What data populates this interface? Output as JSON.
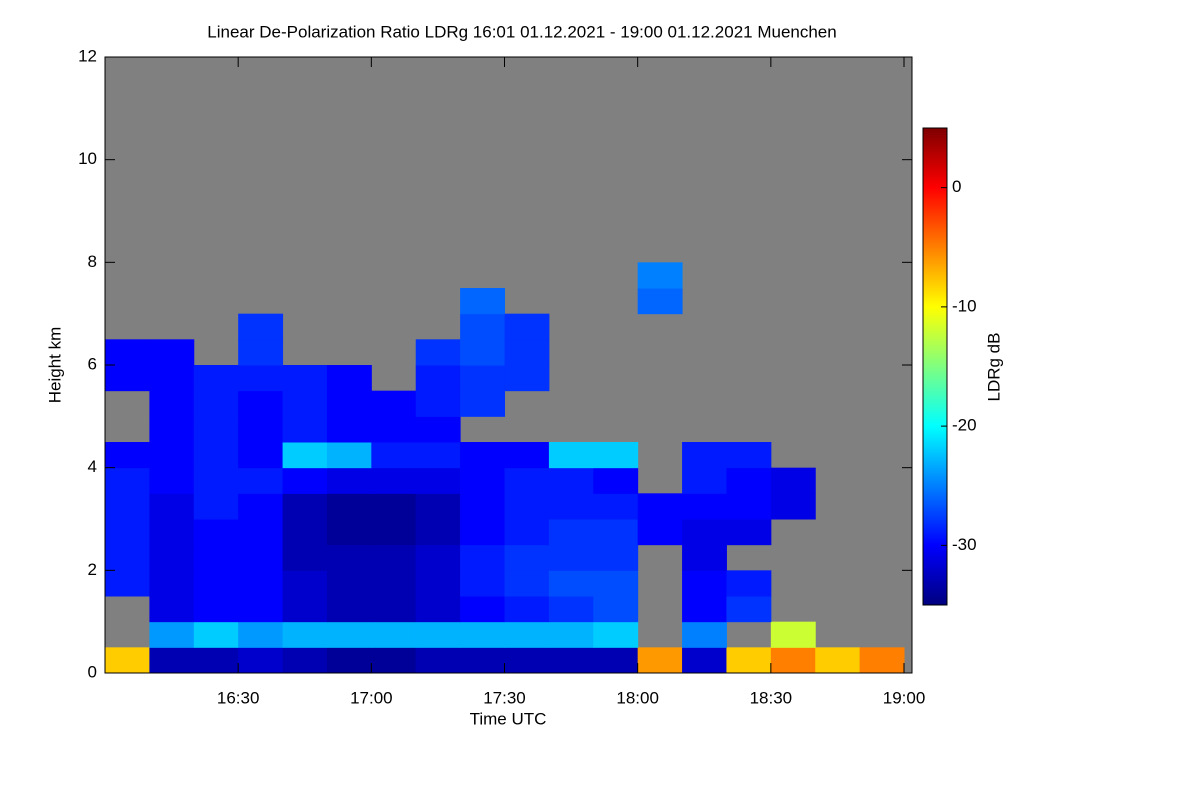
{
  "chart_data": {
    "type": "heatmap",
    "title": "Linear De-Polarization Ratio LDRg   16:01 01.12.2021 - 19:00 01.12.2021 Muenchen",
    "x_label": "Time UTC",
    "y_label": "Height km",
    "colorbar_label": "LDRg dB",
    "xlim": [
      16.0,
      19.03
    ],
    "xticks": [
      {
        "value": 16.5,
        "label": "16:30"
      },
      {
        "value": 17.0,
        "label": "17:00"
      },
      {
        "value": 17.5,
        "label": "17:30"
      },
      {
        "value": 18.0,
        "label": "18:00"
      },
      {
        "value": 18.5,
        "label": "18:30"
      },
      {
        "value": 19.0,
        "label": "19:00"
      }
    ],
    "ylim": [
      0,
      12
    ],
    "yticks": [
      0,
      2,
      4,
      6,
      8,
      10,
      12
    ],
    "zlim": [
      -35,
      5
    ],
    "zticks": [
      0,
      -10,
      -20,
      -30
    ],
    "colormap": "jet",
    "missing_color": "#808080",
    "x_bins": [
      16.0,
      16.1667,
      16.3333,
      16.5,
      16.6667,
      16.8333,
      17.0,
      17.1667,
      17.3333,
      17.5,
      17.6667,
      17.8333,
      18.0,
      18.1667,
      18.3333,
      18.5,
      18.6667,
      18.8333,
      19.0
    ],
    "y_bins": [
      0,
      0.5,
      1,
      1.5,
      2,
      2.5,
      3,
      3.5,
      4,
      4.5,
      5,
      5.5,
      6,
      6.5,
      7,
      7.5,
      8
    ],
    "z": [
      [
        -8,
        -33,
        -33,
        -32,
        -33,
        -34,
        -34,
        -33,
        -33,
        -33,
        -33,
        -33,
        -6,
        -32,
        -8,
        -5,
        -8,
        -5
      ],
      [
        null,
        -24,
        -22,
        -24,
        -23,
        -23,
        -23,
        -23,
        -23,
        -23,
        -23,
        -22,
        null,
        -25,
        null,
        -12,
        null,
        null
      ],
      [
        null,
        -31,
        -30,
        -30,
        -32,
        -33,
        -33,
        -32,
        -30,
        -29,
        -28,
        -27,
        null,
        -30,
        -28,
        null,
        null,
        null
      ],
      [
        -29,
        -31,
        -30,
        -30,
        -32,
        -33,
        -33,
        -32,
        -29,
        -28,
        -27,
        -27,
        null,
        -30,
        -29,
        null,
        null,
        null
      ],
      [
        -29,
        -31,
        -30,
        -30,
        -33,
        -33,
        -33,
        -32,
        -29,
        -28,
        -28,
        -28,
        null,
        -31,
        null,
        null,
        null,
        null
      ],
      [
        -29,
        -31,
        -30,
        -30,
        -33,
        -34,
        -34,
        -33,
        -30,
        -29,
        -28,
        -28,
        -30,
        -31,
        -31,
        null,
        null,
        null
      ],
      [
        -29,
        -31,
        -29,
        -30,
        -33,
        -34,
        -34,
        -33,
        -30,
        -29,
        -29,
        -29,
        -30,
        -30,
        -30,
        -31,
        null,
        null
      ],
      [
        -29,
        -30,
        -29,
        -29,
        -30,
        -31,
        -31,
        -31,
        -30,
        -29,
        -29,
        -30,
        null,
        -29,
        -30,
        -31,
        null,
        null
      ],
      [
        -30,
        -30,
        -29,
        -30,
        -22,
        -23,
        -29,
        -29,
        -30,
        -30,
        -22,
        -22,
        null,
        -29,
        -29,
        null,
        null,
        null
      ],
      [
        null,
        -30,
        -29,
        -30,
        -29,
        -30,
        -30,
        -30,
        null,
        null,
        null,
        null,
        null,
        null,
        null,
        null,
        null,
        null
      ],
      [
        null,
        -30,
        -29,
        -30,
        -29,
        -30,
        -30,
        -29,
        -28,
        null,
        null,
        null,
        null,
        null,
        null,
        null,
        null,
        null
      ],
      [
        -30,
        -30,
        -29,
        -29,
        -29,
        -30,
        null,
        -29,
        -28,
        -28,
        null,
        null,
        null,
        null,
        null,
        null,
        null,
        null
      ],
      [
        -30,
        -30,
        null,
        -28,
        null,
        null,
        null,
        -28,
        -27,
        -28,
        null,
        null,
        null,
        null,
        null,
        null,
        null,
        null
      ],
      [
        null,
        null,
        null,
        -28,
        null,
        null,
        null,
        null,
        -27,
        -28,
        null,
        null,
        null,
        null,
        null,
        null,
        null,
        null
      ],
      [
        null,
        null,
        null,
        null,
        null,
        null,
        null,
        null,
        -26,
        null,
        null,
        null,
        -26,
        null,
        null,
        null,
        null,
        null
      ],
      [
        null,
        null,
        null,
        null,
        null,
        null,
        null,
        null,
        null,
        null,
        null,
        null,
        -25,
        null,
        null,
        null,
        null,
        null
      ]
    ]
  }
}
